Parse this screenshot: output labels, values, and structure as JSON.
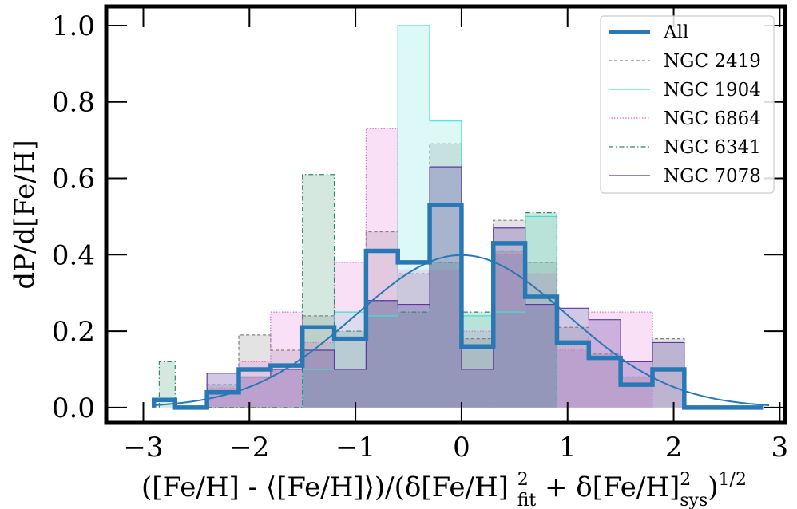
{
  "chart_data": {
    "type": "histogram",
    "xlabel_parts": {
      "main": "([Fe/H] - ⟨[Fe/H]⟩)/(δ[Fe/H]",
      "sup1": "2",
      "sub1": "fit",
      "mid": " + δ[Fe/H]",
      "sup2": "2",
      "sub2": "sys",
      "close": ")",
      "sup3": "1/2"
    },
    "ylabel": "dP/d[Fe/H]",
    "xlim": [
      -3.35,
      3.05
    ],
    "ylim": [
      -0.04,
      1.05
    ],
    "xticks": [
      -3,
      -2,
      -1,
      0,
      1,
      2,
      3
    ],
    "xtick_labels": [
      "−3",
      "−2",
      "−1",
      "0",
      "1",
      "2",
      "3"
    ],
    "yticks": [
      0.0,
      0.2,
      0.4,
      0.6,
      0.8,
      1.0
    ],
    "ytick_labels": [
      "0.0",
      "0.2",
      "0.4",
      "0.6",
      "0.8",
      "1.0"
    ],
    "legend_position": "top-right",
    "series": [
      {
        "name": "NGC 2419",
        "key": "ngc2419",
        "color": "#808080",
        "dash": "4,3",
        "width": 1.2,
        "fill_opacity": 0.22,
        "edges": [
          -2.4,
          -2.1,
          -1.8,
          -1.5,
          -1.2,
          -0.9,
          -0.6,
          -0.3,
          0.0,
          0.3,
          0.6,
          0.9,
          1.2,
          1.5,
          1.8,
          2.1
        ],
        "values": [
          0.06,
          0.19,
          0.15,
          0.24,
          0.1,
          0.46,
          0.35,
          0.69,
          0.18,
          0.49,
          0.38,
          0.21,
          0.14,
          0.08,
          0.18
        ]
      },
      {
        "name": "NGC 1904",
        "key": "ngc1904",
        "color": "#40e0d0",
        "dash": "",
        "width": 1.2,
        "fill_opacity": 0.18,
        "edges": [
          -1.5,
          -1.2,
          -0.9,
          -0.6,
          -0.3,
          0.0,
          0.3,
          0.6,
          0.9
        ],
        "values": [
          0.1,
          0.25,
          0.24,
          1.0,
          0.75,
          0.24,
          0.25,
          0.5
        ]
      },
      {
        "name": "NGC 6864",
        "key": "ngc6864",
        "color": "#e066d0",
        "dash": "1.5,2",
        "width": 1.2,
        "fill_opacity": 0.2,
        "edges": [
          -2.4,
          -2.1,
          -1.8,
          -1.5,
          -1.2,
          -0.9,
          -0.6,
          -0.3,
          0.0,
          0.3,
          0.6,
          0.9,
          1.2,
          1.5,
          1.8
        ],
        "values": [
          0.05,
          0.12,
          0.25,
          0.17,
          0.38,
          0.73,
          0.36,
          0.36,
          0.2,
          0.4,
          0.35,
          0.15,
          0.25,
          0.25
        ]
      },
      {
        "name": "NGC 6341",
        "key": "ngc6341",
        "color": "#2e8b66",
        "dash": "6,3,1.5,3",
        "width": 1.2,
        "fill_opacity": 0.2,
        "edges": [
          -2.85,
          -2.7,
          -2.4,
          -2.1,
          -1.8,
          -1.5,
          -1.2,
          -0.9,
          -0.6,
          -0.3,
          0.0,
          0.3,
          0.6,
          0.9
        ],
        "values": [
          0.12,
          0.0,
          0.0,
          0.0,
          0.0,
          0.61,
          0.2,
          0.28,
          0.25,
          0.38,
          0.25,
          0.41,
          0.51
        ]
      },
      {
        "name": "NGC 7078",
        "key": "ngc7078",
        "color": "#5b3aa0",
        "dash": "",
        "width": 1.2,
        "fill_opacity": 0.28,
        "edges": [
          -2.4,
          -2.1,
          -1.8,
          -1.5,
          -1.2,
          -0.9,
          -0.6,
          -0.3,
          0.0,
          0.3,
          0.6,
          0.9,
          1.2,
          1.5,
          1.8,
          2.1
        ],
        "values": [
          0.09,
          0.08,
          0.1,
          0.15,
          0.1,
          0.28,
          0.27,
          0.63,
          0.1,
          0.47,
          0.27,
          0.26,
          0.23,
          0.12,
          0.17
        ]
      },
      {
        "name": "All",
        "key": "all",
        "color": "#2878b5",
        "dash": "",
        "width": 5.5,
        "fill_opacity": 0.0,
        "edges": [
          -2.9,
          -2.7,
          -2.4,
          -2.1,
          -1.8,
          -1.5,
          -1.2,
          -0.9,
          -0.6,
          -0.3,
          0.0,
          0.3,
          0.6,
          0.9,
          1.2,
          1.5,
          1.8,
          2.1,
          2.85
        ],
        "values": [
          0.02,
          0.0,
          0.04,
          0.1,
          0.11,
          0.21,
          0.18,
          0.41,
          0.38,
          0.53,
          0.16,
          0.43,
          0.29,
          0.17,
          0.13,
          0.06,
          0.1,
          0.0
        ]
      }
    ],
    "legend_order": [
      "all",
      "ngc2419",
      "ngc1904",
      "ngc6864",
      "ngc6341",
      "ngc7078"
    ],
    "gaussian": {
      "mean": 0.0,
      "sigma": 1.0,
      "color": "#2878b5",
      "x_range": [
        -2.9,
        2.9
      ]
    }
  }
}
